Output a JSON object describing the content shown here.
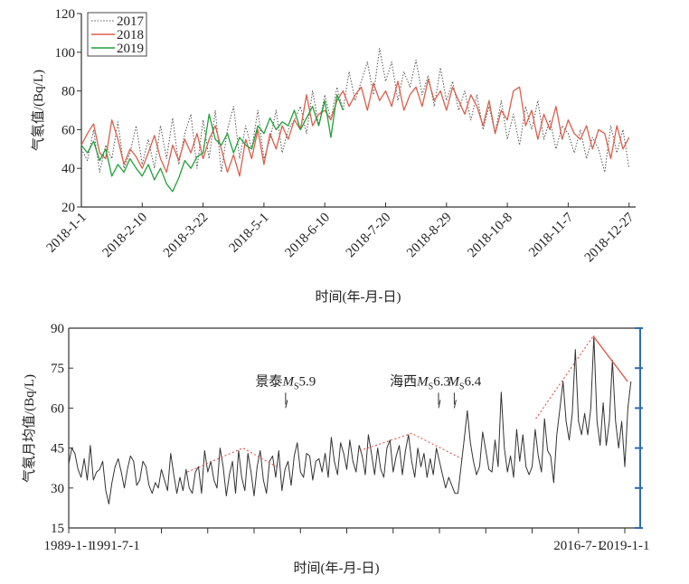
{
  "chart_data": [
    {
      "type": "line",
      "ylabel": "气氡值/(Bq/L)",
      "xlabel": "时间(年-月-日)",
      "ylim": [
        20,
        120
      ],
      "yticks": [
        20,
        40,
        60,
        80,
        100,
        120
      ],
      "x_unit": "day of year (sampled every 4 days)",
      "xtick_labels": [
        "2018-1-1",
        "2018-2-10",
        "2018-3-22",
        "2018-5-1",
        "2018-6-10",
        "2018-7-20",
        "2018-8-29",
        "2018-10-8",
        "2018-11-7",
        "2018-12-27"
      ],
      "xtick_days": [
        0,
        40,
        80,
        120,
        160,
        200,
        240,
        280,
        320,
        360
      ],
      "legend": {
        "placement": "top-left"
      },
      "series": [
        {
          "name": "2017",
          "color": "#555555",
          "style": "dotted",
          "step_days": 4,
          "values": [
            50,
            44,
            60,
            38,
            52,
            45,
            64,
            40,
            48,
            62,
            42,
            55,
            40,
            62,
            45,
            66,
            42,
            58,
            68,
            40,
            65,
            45,
            70,
            38,
            60,
            72,
            45,
            62,
            50,
            70,
            45,
            55,
            70,
            48,
            60,
            65,
            72,
            58,
            80,
            62,
            78,
            65,
            82,
            70,
            90,
            75,
            85,
            95,
            78,
            102,
            85,
            95,
            75,
            90,
            82,
            96,
            78,
            88,
            72,
            92,
            75,
            85,
            70,
            80,
            65,
            78,
            60,
            72,
            58,
            75,
            55,
            68,
            52,
            72,
            60,
            75,
            55,
            65,
            50,
            62,
            58,
            48,
            60,
            45,
            56,
            50,
            38,
            62,
            48,
            60,
            40
          ]
        },
        {
          "name": "2018",
          "color": "#d9604c",
          "style": "solid",
          "step_days": 4,
          "values": [
            52,
            58,
            63,
            48,
            45,
            65,
            55,
            42,
            50,
            46,
            40,
            48,
            57,
            45,
            38,
            52,
            44,
            55,
            48,
            58,
            45,
            55,
            62,
            50,
            38,
            47,
            36,
            55,
            45,
            60,
            42,
            58,
            50,
            62,
            55,
            65,
            60,
            78,
            62,
            68,
            70,
            65,
            75,
            80,
            72,
            78,
            82,
            70,
            84,
            75,
            80,
            72,
            85,
            70,
            78,
            82,
            72,
            86,
            75,
            80,
            70,
            82,
            75,
            68,
            78,
            72,
            62,
            75,
            58,
            70,
            65,
            80,
            82,
            62,
            70,
            55,
            68,
            60,
            72,
            55,
            65,
            58,
            55,
            62,
            50,
            60,
            58,
            45,
            62,
            50,
            56
          ]
        },
        {
          "name": "2019",
          "color": "#22a03a",
          "style": "solid",
          "step_days": 4,
          "values": [
            52,
            48,
            54,
            44,
            50,
            36,
            42,
            38,
            45,
            40,
            36,
            42,
            34,
            40,
            32,
            28,
            35,
            44,
            40,
            46,
            48,
            68,
            55,
            52,
            58,
            48,
            56,
            52,
            50,
            62,
            58,
            66,
            60,
            64,
            62,
            70,
            60,
            66,
            72,
            62,
            75,
            56,
            78,
            70
          ]
        }
      ]
    },
    {
      "type": "line",
      "ylabel": "气氡月均值/(Bq/L)",
      "xlabel": "时间(年-月-日)",
      "ylim": [
        15,
        90
      ],
      "yticks": [
        15,
        30,
        45,
        60,
        75,
        90
      ],
      "xlim_years": [
        1989,
        2019.83
      ],
      "tick_step_years": 2.5,
      "xtick_labels": [
        {
          "year": 1989.0,
          "label": "1989-1-1"
        },
        {
          "year": 1991.5,
          "label": "1991-7-1"
        },
        {
          "year": 2016.5,
          "label": "2016-7-1"
        },
        {
          "year": 2019.0,
          "label": "2019-1-1"
        }
      ],
      "series": {
        "name": "气氡月均值",
        "color": "#333333",
        "start_year": 1989,
        "step_years": 0.16667,
        "values": [
          39,
          45,
          43,
          37,
          34,
          41,
          33,
          46,
          33,
          36,
          37,
          40,
          29,
          24,
          32,
          38,
          41,
          36,
          30,
          37,
          42,
          40,
          31,
          33,
          40,
          38,
          31,
          28,
          32,
          30,
          37,
          33,
          29,
          43,
          35,
          28,
          34,
          29,
          37,
          30,
          28,
          36,
          38,
          28,
          44,
          36,
          40,
          33,
          30,
          45,
          38,
          27,
          35,
          40,
          28,
          44,
          34,
          29,
          43,
          36,
          27,
          38,
          44,
          33,
          28,
          40,
          42,
          34,
          44,
          29,
          37,
          40,
          31,
          42,
          47,
          36,
          34,
          43,
          42,
          33,
          40,
          41,
          36,
          43,
          34,
          49,
          40,
          35,
          47,
          43,
          37,
          48,
          40,
          36,
          46,
          42,
          35,
          50,
          43,
          35,
          45,
          37,
          34,
          45,
          48,
          36,
          42,
          46,
          35,
          44,
          50,
          40,
          34,
          45,
          38,
          43,
          34,
          41,
          35,
          45,
          40,
          35,
          30,
          34,
          31,
          28,
          28,
          38,
          48,
          59,
          47,
          40,
          35,
          38,
          51,
          44,
          37,
          36,
          48,
          38,
          66,
          45,
          36,
          42,
          34,
          52,
          40,
          50,
          38,
          35,
          38,
          52,
          42,
          36,
          56,
          44,
          42,
          32,
          50,
          60,
          70,
          55,
          48,
          58,
          82,
          55,
          50,
          58,
          50,
          60,
          87,
          55,
          46,
          62,
          46,
          55,
          78,
          55,
          45,
          55,
          38,
          60,
          70
        ]
      },
      "trend_lines": [
        {
          "style": "dotted",
          "color": "#e0504a",
          "points": [
            [
              1995.4,
              36
            ],
            [
              1998.4,
              45
            ],
            [
              2000.2,
              38
            ]
          ]
        },
        {
          "style": "dotted",
          "color": "#e0504a",
          "points": [
            [
              2004.7,
              44
            ],
            [
              2007.5,
              50.5
            ],
            [
              2010.2,
              41
            ]
          ]
        },
        {
          "style": "dotted",
          "color": "#e0504a",
          "points": [
            [
              2014.2,
              56
            ],
            [
              2017.3,
              87
            ]
          ]
        },
        {
          "style": "solid",
          "color": "#d9604c",
          "points": [
            [
              2017.3,
              87
            ],
            [
              2019.15,
              70
            ]
          ]
        }
      ],
      "annotations": [
        {
          "place": "景泰",
          "m": "M",
          "sub": "S",
          "mag": "5.9",
          "year": 2000.7,
          "value": 60
        },
        {
          "place": "海西",
          "m": "M",
          "sub": "S",
          "mag": "6.3",
          "year": 2008.95,
          "value": 60
        },
        {
          "place": "",
          "m": "M",
          "sub": "S",
          "mag": "6.4",
          "year": 2009.8,
          "value": 60
        }
      ],
      "right_axis_color": "#2a6db0"
    }
  ]
}
